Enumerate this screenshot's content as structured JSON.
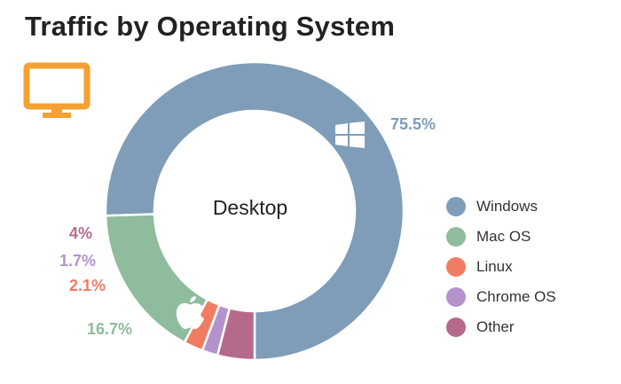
{
  "title": "Traffic by Operating System",
  "colors": {
    "windows": "#7f9db9",
    "macos": "#8ebc9c",
    "linux": "#f07d63",
    "chromeos": "#b493cd",
    "other": "#b56a8c",
    "monitor": "#f5a030"
  },
  "icons": [
    "monitor-icon",
    "windows-logo-icon",
    "apple-logo-icon"
  ],
  "chart_data": {
    "type": "pie",
    "subtype": "donut",
    "title": "Traffic by Operating System",
    "center_label": "Desktop",
    "slices": [
      {
        "name": "Windows",
        "value": 75.5,
        "label": "75.5%",
        "color": "#7f9db9"
      },
      {
        "name": "Mac OS",
        "value": 16.7,
        "label": "16.7%",
        "color": "#8ebc9c"
      },
      {
        "name": "Linux",
        "value": 2.1,
        "label": "2.1%",
        "color": "#f07d63"
      },
      {
        "name": "Chrome OS",
        "value": 1.7,
        "label": "1.7%",
        "color": "#b493cd"
      },
      {
        "name": "Other",
        "value": 4,
        "label": "4%",
        "color": "#b56a8c"
      }
    ],
    "legend_position": "right"
  }
}
